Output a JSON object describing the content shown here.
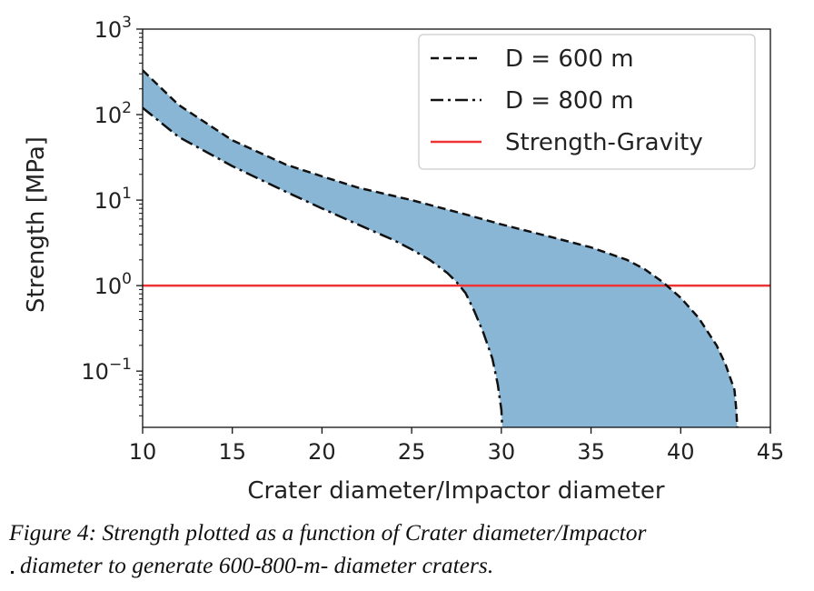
{
  "chart_data": {
    "type": "area",
    "xlabel": "Crater diameter/Impactor diameter",
    "ylabel": "Strength [MPa]",
    "xlim": [
      10,
      45
    ],
    "ylim": [
      0.022,
      1000
    ],
    "yscale": "log",
    "x_ticks": [
      "10",
      "15",
      "20",
      "25",
      "30",
      "35",
      "40",
      "45"
    ],
    "y_ticks": [
      {
        "base": "10",
        "exp": "3",
        "value": 1000
      },
      {
        "base": "10",
        "exp": "2",
        "value": 100
      },
      {
        "base": "10",
        "exp": "1",
        "value": 10
      },
      {
        "base": "10",
        "exp": "0",
        "value": 1
      },
      {
        "base": "10",
        "exp": "−1",
        "value": 0.1
      }
    ],
    "fill_color": "#8ab6d6",
    "series": [
      {
        "name": "D = 600 m",
        "style": "dashed",
        "color": "#111111",
        "x": [
          10,
          12,
          15,
          18,
          20,
          22,
          25,
          28,
          30,
          33,
          35,
          37,
          38,
          39,
          40,
          41,
          42,
          42.5,
          43,
          43.1,
          43.15
        ],
        "y": [
          330,
          130,
          50,
          26,
          19,
          14,
          10,
          6.8,
          5.2,
          3.6,
          2.8,
          2.0,
          1.55,
          1.1,
          0.72,
          0.42,
          0.2,
          0.12,
          0.06,
          0.035,
          0.022
        ]
      },
      {
        "name": "D = 800 m",
        "style": "dashdot",
        "color": "#111111",
        "x": [
          10,
          12,
          15,
          18,
          20,
          22,
          24,
          25,
          26,
          27,
          27.5,
          28,
          28.5,
          29,
          29.5,
          29.8,
          30,
          30.05
        ],
        "y": [
          120,
          55,
          25,
          12.5,
          8,
          5.2,
          3.4,
          2.65,
          2.0,
          1.4,
          1.1,
          0.82,
          0.5,
          0.28,
          0.14,
          0.07,
          0.035,
          0.022
        ]
      },
      {
        "name": "Strength-Gravity",
        "style": "solid",
        "color": "#ee3333",
        "x": [
          10,
          45
        ],
        "y": [
          1,
          1
        ]
      }
    ],
    "legend": {
      "location": "top-right"
    }
  },
  "caption": {
    "line1": "Figure 4: Strength plotted as a function of Crater diameter/Impactor",
    "line2": "diameter to generate 600-800-m- diameter craters."
  }
}
